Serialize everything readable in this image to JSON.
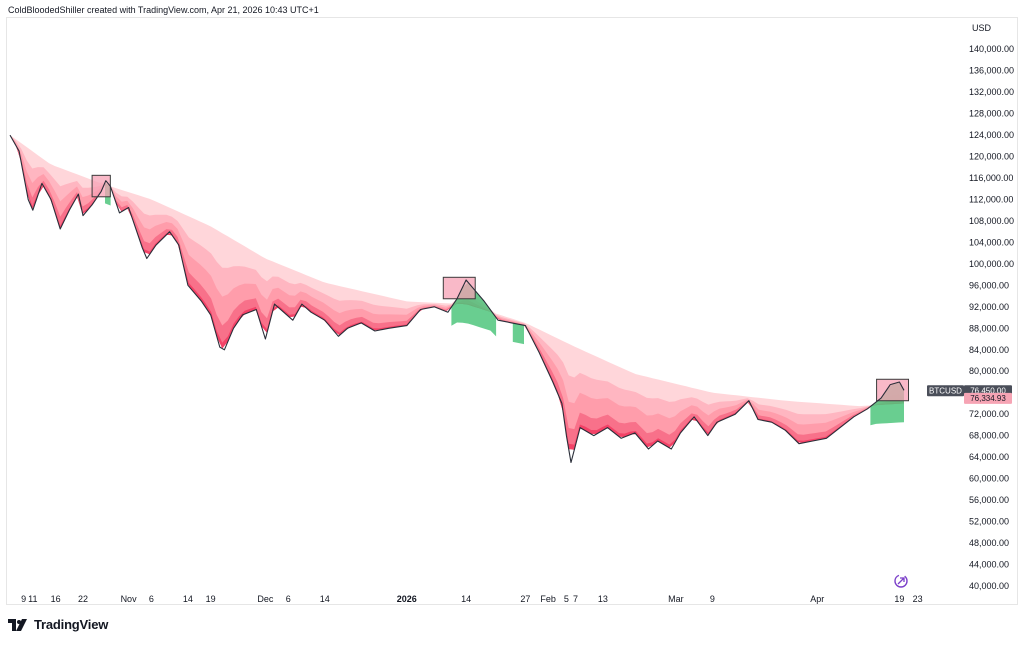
{
  "header": {
    "credit": "ColdBloodedShiller created with TradingView.com, Apr 21, 2026 10:43 UTC+1"
  },
  "footer": {
    "brand": "TradingView"
  },
  "colors": {
    "price_line": "#2a2e39",
    "band_outer": "#ffd1d6",
    "band_mid": "#ff9aa8",
    "band_inner": "#f23d63",
    "band_green": "#4fc57c",
    "band_blue": "#8fb4d8",
    "highlight_fill": "#f7a1b6",
    "highlight_border": "#3b3b3b",
    "last_price_tag": "#4a4e59",
    "band_price_tag": "#f6a4b4",
    "brand_icon": "#7b3fc9"
  },
  "chart_data": {
    "type": "line",
    "title": "",
    "symbol": "BTCUSD",
    "currency": "USD",
    "y_unit": "USD",
    "ylim": [
      37000,
      146000
    ],
    "y_ticks": [
      "40,000.00",
      "44,000.00",
      "48,000.00",
      "52,000.00",
      "56,000.00",
      "60,000.00",
      "64,000.00",
      "68,000.00",
      "72,000.00",
      "76,000.00",
      "80,000.00",
      "84,000.00",
      "88,000.00",
      "92,000.00",
      "96,000.00",
      "100,000.00",
      "104,000.00",
      "108,000.00",
      "112,000.00",
      "116,000.00",
      "120,000.00",
      "124,000.00",
      "128,000.00",
      "132,000.00",
      "136,000.00",
      "140,000.00"
    ],
    "x_ticks": [
      {
        "label": "9",
        "date": "2025-10-09"
      },
      {
        "label": "11",
        "date": "2025-10-11"
      },
      {
        "label": "16",
        "date": "2025-10-16"
      },
      {
        "label": "22",
        "date": "2025-10-22"
      },
      {
        "label": "Nov",
        "date": "2025-11-01"
      },
      {
        "label": "6",
        "date": "2025-11-06"
      },
      {
        "label": "14",
        "date": "2025-11-14"
      },
      {
        "label": "19",
        "date": "2025-11-19"
      },
      {
        "label": "Dec",
        "date": "2025-12-01"
      },
      {
        "label": "6",
        "date": "2025-12-06"
      },
      {
        "label": "14",
        "date": "2025-12-14"
      },
      {
        "label": "2026",
        "date": "2026-01-01"
      },
      {
        "label": "14",
        "date": "2026-01-14"
      },
      {
        "label": "27",
        "date": "2026-01-27"
      },
      {
        "label": "Feb",
        "date": "2026-02-01"
      },
      {
        "label": "5",
        "date": "2026-02-05"
      },
      {
        "label": "7",
        "date": "2026-02-07"
      },
      {
        "label": "13",
        "date": "2026-02-13"
      },
      {
        "label": "Mar",
        "date": "2026-03-01"
      },
      {
        "label": "9",
        "date": "2026-03-09"
      },
      {
        "label": "Apr",
        "date": "2026-04-01"
      },
      {
        "label": "19",
        "date": "2026-04-19"
      },
      {
        "label": "23",
        "date": "2026-04-23"
      }
    ],
    "x_range": [
      "2025-10-06",
      "2026-04-29"
    ],
    "series": [
      {
        "kind": "price",
        "points": [
          [
            "2025-10-06",
            124000
          ],
          [
            "2025-10-08",
            121000
          ],
          [
            "2025-10-10",
            112000
          ],
          [
            "2025-10-11",
            110000
          ],
          [
            "2025-10-13",
            115000
          ],
          [
            "2025-10-15",
            112000
          ],
          [
            "2025-10-17",
            106500
          ],
          [
            "2025-10-19",
            110000
          ],
          [
            "2025-10-21",
            113000
          ],
          [
            "2025-10-22",
            109000
          ],
          [
            "2025-10-24",
            111000
          ],
          [
            "2025-10-26",
            113500
          ],
          [
            "2025-10-27",
            115500
          ],
          [
            "2025-10-28",
            114500
          ],
          [
            "2025-10-30",
            109500
          ],
          [
            "2025-11-01",
            110500
          ],
          [
            "2025-11-04",
            103000
          ],
          [
            "2025-11-05",
            101000
          ],
          [
            "2025-11-07",
            103500
          ],
          [
            "2025-11-10",
            106000
          ],
          [
            "2025-11-12",
            103500
          ],
          [
            "2025-11-14",
            96000
          ],
          [
            "2025-11-17",
            93000
          ],
          [
            "2025-11-19",
            90500
          ],
          [
            "2025-11-21",
            84500
          ],
          [
            "2025-11-22",
            84000
          ],
          [
            "2025-11-24",
            88000
          ],
          [
            "2025-11-26",
            90500
          ],
          [
            "2025-11-29",
            91500
          ],
          [
            "2025-12-01",
            86000
          ],
          [
            "2025-12-03",
            92500
          ],
          [
            "2025-12-05",
            91000
          ],
          [
            "2025-12-07",
            89500
          ],
          [
            "2025-12-09",
            92500
          ],
          [
            "2025-12-11",
            91000
          ],
          [
            "2025-12-14",
            89500
          ],
          [
            "2025-12-17",
            86500
          ],
          [
            "2025-12-19",
            88000
          ],
          [
            "2025-12-22",
            89000
          ],
          [
            "2025-12-25",
            87500
          ],
          [
            "2025-12-28",
            88000
          ],
          [
            "2026-01-01",
            88500
          ],
          [
            "2026-01-04",
            91500
          ],
          [
            "2026-01-07",
            92000
          ],
          [
            "2026-01-10",
            91000
          ],
          [
            "2026-01-12",
            93500
          ],
          [
            "2026-01-14",
            97000
          ],
          [
            "2026-01-16",
            95000
          ],
          [
            "2026-01-18",
            93000
          ],
          [
            "2026-01-21",
            89500
          ],
          [
            "2026-01-24",
            89000
          ],
          [
            "2026-01-27",
            88500
          ],
          [
            "2026-01-30",
            83500
          ],
          [
            "2026-02-02",
            78000
          ],
          [
            "2026-02-04",
            74000
          ],
          [
            "2026-02-05",
            68000
          ],
          [
            "2026-02-06",
            63000
          ],
          [
            "2026-02-08",
            69500
          ],
          [
            "2026-02-11",
            68000
          ],
          [
            "2026-02-14",
            69500
          ],
          [
            "2026-02-17",
            67500
          ],
          [
            "2026-02-20",
            68500
          ],
          [
            "2026-02-23",
            65500
          ],
          [
            "2026-02-25",
            67000
          ],
          [
            "2026-02-28",
            65500
          ],
          [
            "2026-03-02",
            68500
          ],
          [
            "2026-03-05",
            71500
          ],
          [
            "2026-03-08",
            68000
          ],
          [
            "2026-03-10",
            70500
          ],
          [
            "2026-03-14",
            72000
          ],
          [
            "2026-03-17",
            74500
          ],
          [
            "2026-03-19",
            71000
          ],
          [
            "2026-03-22",
            70500
          ],
          [
            "2026-03-25",
            69000
          ],
          [
            "2026-03-28",
            66500
          ],
          [
            "2026-03-31",
            67000
          ],
          [
            "2026-04-03",
            67500
          ],
          [
            "2026-04-06",
            69500
          ],
          [
            "2026-04-09",
            71500
          ],
          [
            "2026-04-12",
            73000
          ],
          [
            "2026-04-15",
            75000
          ],
          [
            "2026-04-17",
            77500
          ],
          [
            "2026-04-19",
            78000
          ],
          [
            "2026-04-20",
            76450
          ]
        ]
      },
      {
        "kind": "band-upper",
        "points": [
          [
            "2025-10-06",
            124000
          ],
          [
            "2025-10-15",
            118500
          ],
          [
            "2025-10-26",
            115000
          ],
          [
            "2025-11-06",
            112000
          ],
          [
            "2025-11-19",
            107000
          ],
          [
            "2025-12-01",
            101000
          ],
          [
            "2025-12-14",
            96500
          ],
          [
            "2026-01-01",
            93000
          ],
          [
            "2026-01-14",
            92500
          ],
          [
            "2026-01-27",
            89000
          ],
          [
            "2026-02-07",
            84500
          ],
          [
            "2026-02-20",
            79500
          ],
          [
            "2026-03-09",
            76000
          ],
          [
            "2026-03-25",
            74500
          ],
          [
            "2026-04-10",
            73500
          ],
          [
            "2026-04-20",
            74000
          ]
        ]
      }
    ],
    "highlights": [
      {
        "start": "2025-10-24",
        "end": "2025-10-28",
        "low": 112500,
        "high": 116500
      },
      {
        "start": "2026-01-09",
        "end": "2026-01-16",
        "low": 93500,
        "high": 97500
      },
      {
        "start": "2026-04-14",
        "end": "2026-04-21",
        "low": 74500,
        "high": 78500
      }
    ],
    "price_labels": [
      {
        "label": "BTCUSD",
        "value": 76450,
        "text": "76,450.00"
      },
      {
        "label": "",
        "value": 76334.93,
        "text": "76,334.93"
      }
    ],
    "grid": false,
    "legend": "none"
  }
}
